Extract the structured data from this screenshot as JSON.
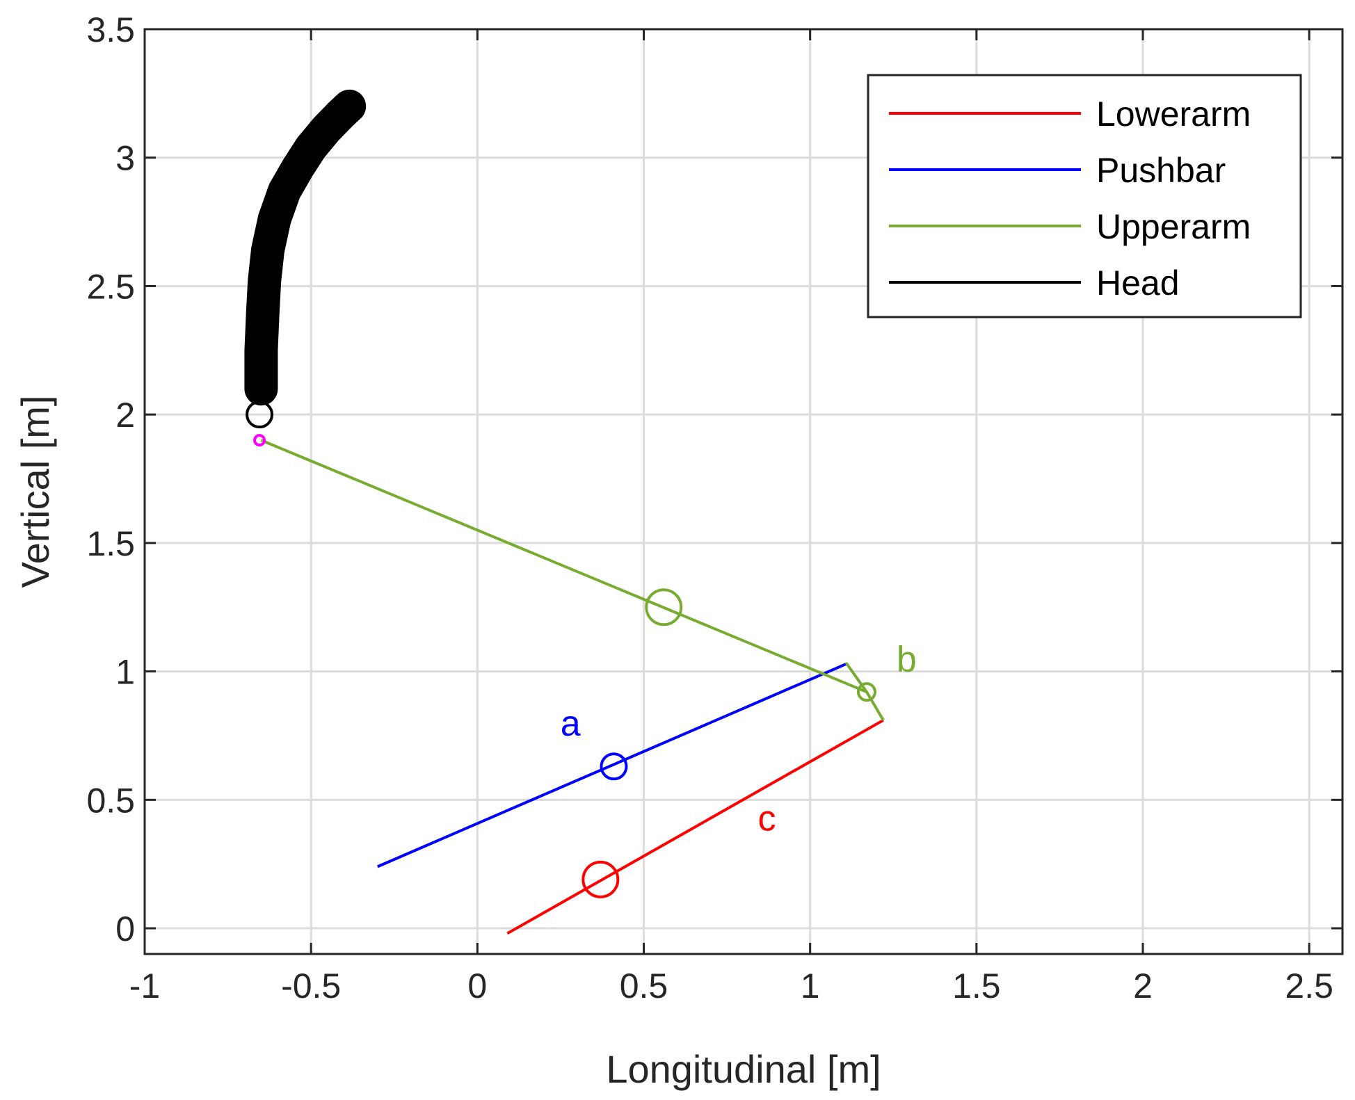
{
  "chart_data": {
    "type": "line",
    "title": "",
    "xlabel": "Longitudinal [m]",
    "ylabel": "Vertical [m]",
    "xlim": [
      -1,
      2.6
    ],
    "ylim": [
      -0.1,
      3.5
    ],
    "xticks": [
      -1,
      -0.5,
      0,
      0.5,
      1,
      1.5,
      2,
      2.5
    ],
    "yticks": [
      0,
      0.5,
      1,
      1.5,
      2,
      2.5,
      3,
      3.5
    ],
    "xtick_labels": [
      "-1",
      "-0.5",
      "0",
      "0.5",
      "1",
      "1.5",
      "2",
      "2.5"
    ],
    "ytick_labels": [
      "0",
      "0.5",
      "1",
      "1.5",
      "2",
      "2.5",
      "3",
      "3.5"
    ],
    "grid": true,
    "legend_position": "top-right",
    "series": [
      {
        "name": "Lowerarm",
        "color": "#ff0000",
        "x": [
          0.09,
          1.22
        ],
        "y": [
          -0.02,
          0.81
        ],
        "marker": {
          "x": 0.37,
          "y": 0.19,
          "size": "large"
        }
      },
      {
        "name": "Pushbar",
        "color": "#0000ff",
        "x": [
          -0.3,
          1.11
        ],
        "y": [
          0.24,
          1.03
        ],
        "marker": {
          "x": 0.41,
          "y": 0.63,
          "size": "medium"
        }
      },
      {
        "name": "Upperarm",
        "color": "#77ac30",
        "x": [
          -0.65,
          1.17,
          1.11,
          1.17,
          1.22
        ],
        "y": [
          1.9,
          0.92,
          1.03,
          0.92,
          0.81
        ],
        "marker": {
          "x": 0.56,
          "y": 1.25,
          "size": "large"
        },
        "marker2": {
          "x": 1.17,
          "y": 0.92,
          "size": "small"
        }
      },
      {
        "name": "Head",
        "color": "#000000",
        "x": [
          -0.65,
          -0.65,
          -0.645,
          -0.64,
          -0.63,
          -0.61,
          -0.58,
          -0.54,
          -0.5,
          -0.455,
          -0.41,
          -0.385
        ],
        "y": [
          2.1,
          2.25,
          2.4,
          2.52,
          2.64,
          2.76,
          2.87,
          2.96,
          3.04,
          3.11,
          3.17,
          3.2
        ],
        "marker": {
          "x": -0.655,
          "y": 2.0,
          "size": "medium"
        },
        "thick": true
      }
    ],
    "extra_markers": [
      {
        "name": "pivot",
        "color": "#ff00ff",
        "x": -0.655,
        "y": 1.9
      }
    ],
    "annotations": [
      {
        "text": "a",
        "x": 0.28,
        "y": 0.75,
        "color": "#0000ff"
      },
      {
        "text": "b",
        "x": 1.29,
        "y": 1.0,
        "color": "#77ac30"
      },
      {
        "text": "c",
        "x": 0.87,
        "y": 0.38,
        "color": "#ff0000"
      }
    ]
  }
}
